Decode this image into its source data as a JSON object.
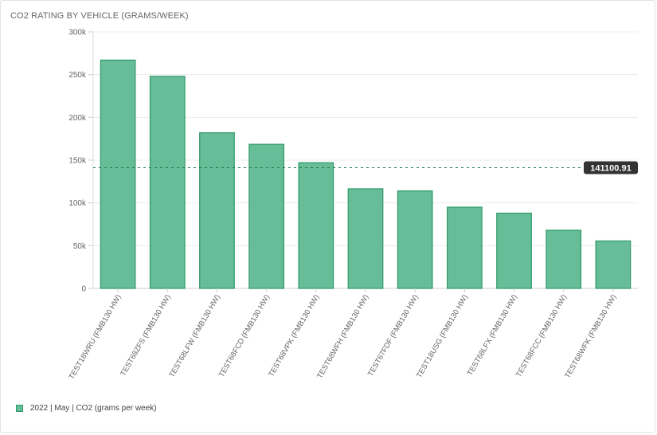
{
  "chart_data": {
    "type": "bar",
    "title": "CO2 RATING BY VEHICLE (GRAMS/WEEK)",
    "categories": [
      "TEST18WRU (FMB130 HW)",
      "TEST68ZFS (FMB130 HW)",
      "TEST68LFW (FMB130 HW)",
      "TEST68FCD (FMB130 HW)",
      "TEST68VPK (FMB130 HW)",
      "TEST68WFH (FMB130 HW)",
      "TEST67FDF (FMB130 HW)",
      "TEST18USG (FMB130 HW)",
      "TEST68LFX (FMB130 HW)",
      "TEST68FCC (FMB130 HW)",
      "TEST68WFK (FMB130 HW)"
    ],
    "series": [
      {
        "name": "2022 | May | CO2 (grams per week)",
        "values": [
          267000,
          248000,
          182000,
          168500,
          147000,
          116500,
          114000,
          95000,
          88000,
          68000,
          55500
        ]
      }
    ],
    "ylim": [
      0,
      300000
    ],
    "yticks": [
      0,
      50000,
      100000,
      150000,
      200000,
      250000,
      300000
    ],
    "ytick_labels": [
      "0",
      "50k",
      "100k",
      "150k",
      "200k",
      "250k",
      "300k"
    ],
    "xlabel": "",
    "ylabel": "",
    "reference_line": {
      "value": 141100.91,
      "label": "141100.91"
    },
    "colors": {
      "bar_fill": "#66bd98",
      "bar_stroke": "#2e9a68",
      "reference_line": "#1f7a4f",
      "label_bg": "#333333"
    },
    "grid": true,
    "legend_position": "bottom-left"
  }
}
